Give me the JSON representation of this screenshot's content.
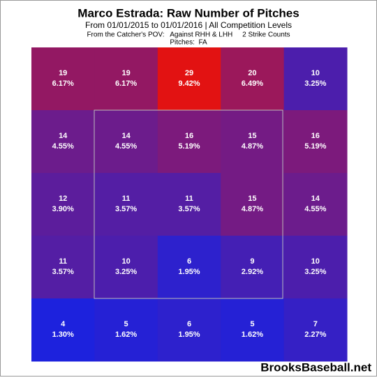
{
  "chart_data": {
    "type": "heatmap",
    "title": "Marco Estrada: Raw Number of Pitches",
    "subtitle": "From 01/01/2015 to 01/01/2016 | All Competition Levels",
    "filters": "From the Catcher's POV:   Against RHH & LHH     2 Strike Counts",
    "pitches": "Pitches:  FA",
    "watermark": "BrooksBaseball.net",
    "color_low": "#1d22dd",
    "color_high": "#e21212",
    "values": [
      [
        19,
        19,
        29,
        20,
        10
      ],
      [
        14,
        14,
        16,
        15,
        16
      ],
      [
        12,
        11,
        11,
        15,
        14
      ],
      [
        11,
        10,
        6,
        9,
        10
      ],
      [
        4,
        5,
        6,
        5,
        7
      ]
    ],
    "percents": [
      [
        6.17,
        6.17,
        9.42,
        6.49,
        3.25
      ],
      [
        4.55,
        4.55,
        5.19,
        4.87,
        5.19
      ],
      [
        3.9,
        3.57,
        3.57,
        4.87,
        4.55
      ],
      [
        3.57,
        3.25,
        1.95,
        2.92,
        3.25
      ],
      [
        1.3,
        1.62,
        1.95,
        1.62,
        2.27
      ]
    ],
    "percent_labels": [
      [
        "6.17%",
        "6.17%",
        "9.42%",
        "6.49%",
        "3.25%"
      ],
      [
        "4.55%",
        "4.55%",
        "5.19%",
        "4.87%",
        "5.19%"
      ],
      [
        "3.90%",
        "3.57%",
        "3.57%",
        "4.87%",
        "4.55%"
      ],
      [
        "3.57%",
        "3.25%",
        "1.95%",
        "2.92%",
        "3.25%"
      ],
      [
        "1.30%",
        "1.62%",
        "1.95%",
        "1.62%",
        "2.27%"
      ]
    ]
  }
}
